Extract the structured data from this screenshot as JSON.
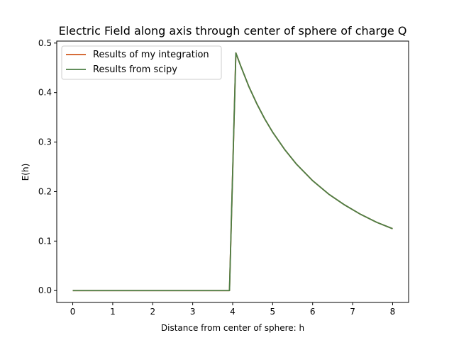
{
  "chart_data": {
    "type": "line",
    "title": "Electric Field along axis through center of sphere of charge Q",
    "xlabel": "Distance from center of sphere: h",
    "ylabel": "E(h)",
    "xlim": [
      -0.4,
      8.4
    ],
    "ylim": [
      -0.024,
      0.504
    ],
    "xticks": [
      0,
      1,
      2,
      3,
      4,
      5,
      6,
      7,
      8
    ],
    "yticks": [
      0.0,
      0.1,
      0.2,
      0.3,
      0.4,
      0.5
    ],
    "ytick_labels": [
      "0.0",
      "0.1",
      "0.2",
      "0.3",
      "0.4",
      "0.5"
    ],
    "grid": false,
    "legend_position": "upper-left",
    "series": [
      {
        "name": "Results of my integration",
        "color": "#d0581e",
        "x": [
          0.0,
          1.0,
          2.0,
          3.0,
          3.92,
          4.0,
          4.08,
          4.2,
          4.4,
          4.6,
          4.8,
          5.0,
          5.3,
          5.6,
          6.0,
          6.4,
          6.8,
          7.2,
          7.6,
          8.0
        ],
        "y": [
          0.0,
          0.0,
          0.0,
          0.0,
          0.0,
          0.24,
          0.48,
          0.454,
          0.413,
          0.378,
          0.347,
          0.32,
          0.285,
          0.255,
          0.222,
          0.195,
          0.173,
          0.154,
          0.138,
          0.125
        ]
      },
      {
        "name": "Results from scipy",
        "color": "#4c7e45",
        "x": [
          0.0,
          1.0,
          2.0,
          3.0,
          3.92,
          4.0,
          4.08,
          4.2,
          4.4,
          4.6,
          4.8,
          5.0,
          5.3,
          5.6,
          6.0,
          6.4,
          6.8,
          7.2,
          7.6,
          8.0
        ],
        "y": [
          0.0,
          0.0,
          0.0,
          0.0,
          0.0,
          0.24,
          0.48,
          0.454,
          0.413,
          0.378,
          0.347,
          0.32,
          0.285,
          0.255,
          0.222,
          0.195,
          0.173,
          0.154,
          0.138,
          0.125
        ]
      }
    ]
  }
}
